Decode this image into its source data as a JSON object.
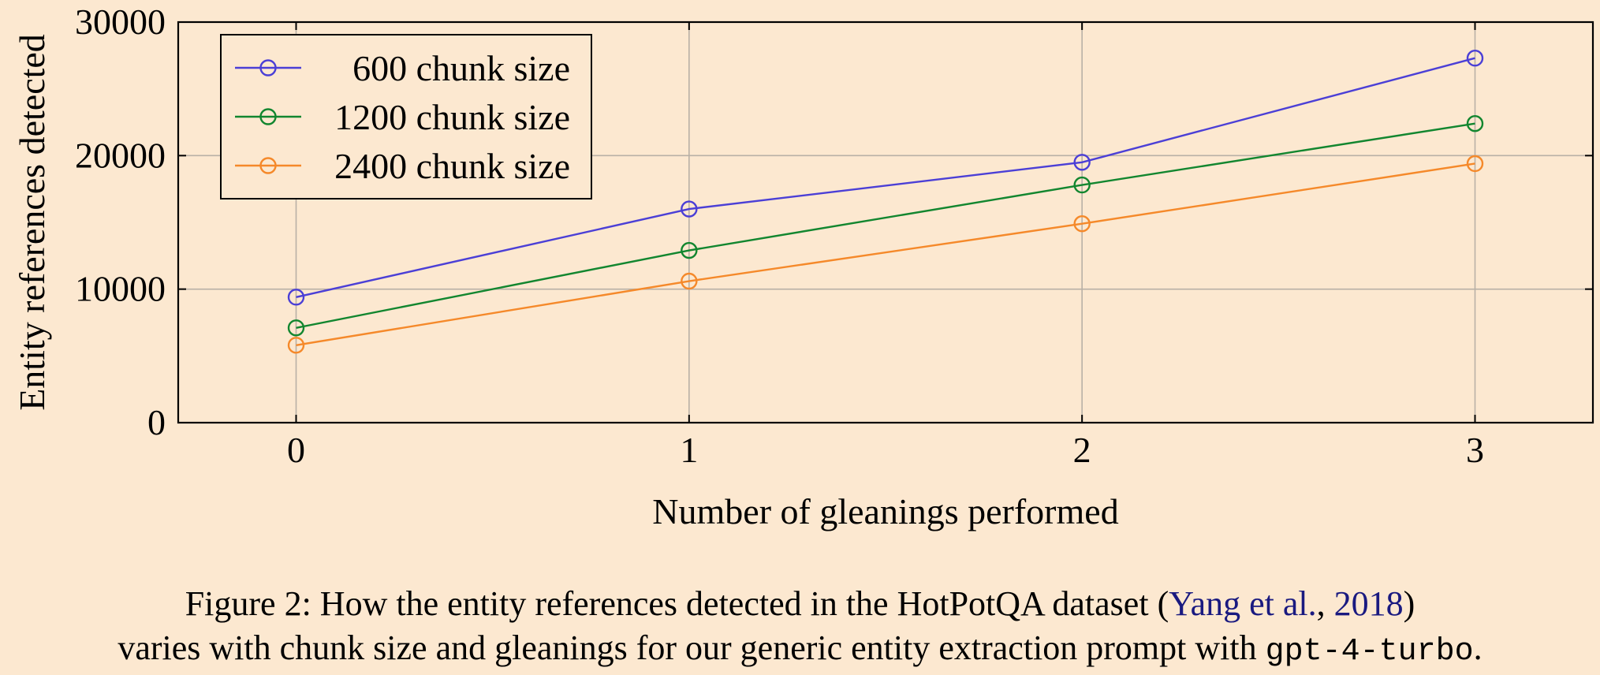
{
  "chart_data": {
    "type": "line",
    "xlabel": "Number of gleanings performed",
    "ylabel": "Entity references detected",
    "x": [
      0,
      1,
      2,
      3
    ],
    "xlim": [
      -0.3,
      3.3
    ],
    "ylim": [
      0,
      30000
    ],
    "xticks": [
      "0",
      "1",
      "2",
      "3"
    ],
    "yticks": [
      "0",
      "10000",
      "20000",
      "30000"
    ],
    "grid": true,
    "legend_position": "top-left",
    "series": [
      {
        "name": "600 chunk size",
        "color": "#4b3fd6",
        "values": [
          9400,
          16000,
          19500,
          27300
        ]
      },
      {
        "name": "1200 chunk size",
        "color": "#12862f",
        "values": [
          7100,
          12900,
          17800,
          22400
        ]
      },
      {
        "name": "2400 chunk size",
        "color": "#f5892a",
        "values": [
          5800,
          10600,
          14900,
          19400
        ]
      }
    ]
  },
  "caption": {
    "line1_pre": "Figure 2: How the entity references detected in the HotPotQA dataset (",
    "cite_authors": "Yang et al.",
    "cite_sep": ", ",
    "cite_year": "2018",
    "line1_post": ")",
    "line2_pre": "varies with chunk size and gleanings for our generic entity extraction prompt with ",
    "model": "gpt-4-turbo",
    "line2_post": "."
  }
}
